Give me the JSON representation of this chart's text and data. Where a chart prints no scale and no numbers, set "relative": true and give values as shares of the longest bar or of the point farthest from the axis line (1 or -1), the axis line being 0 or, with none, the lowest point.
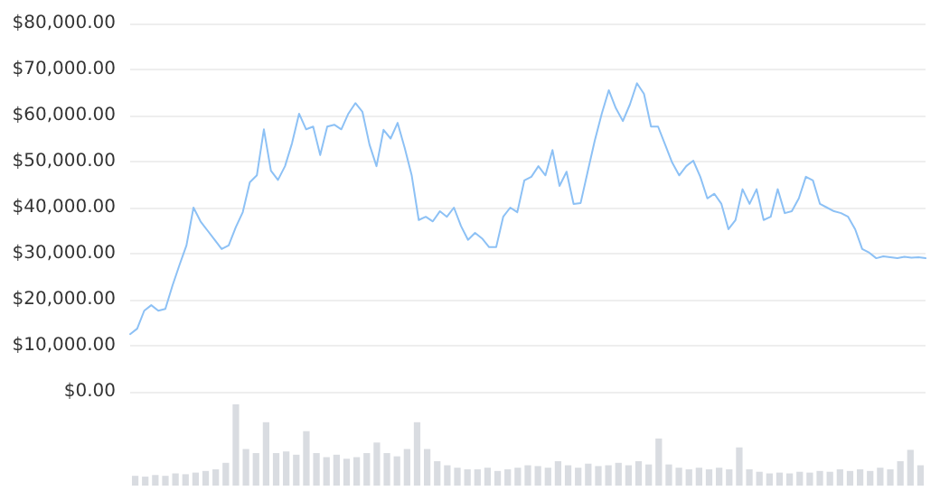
{
  "chart_data": [
    {
      "type": "line",
      "categories": [
        null,
        null,
        null,
        null,
        null,
        null,
        null,
        null,
        null,
        null,
        null,
        null,
        null,
        null,
        null,
        null,
        null,
        null,
        null,
        null,
        null,
        null,
        null,
        null,
        null,
        null,
        null,
        null,
        null,
        null,
        null,
        null,
        null,
        null,
        null,
        null,
        null,
        null,
        null,
        null,
        null,
        null,
        null,
        null,
        null,
        null,
        null,
        null,
        null,
        null,
        null,
        null,
        null,
        null,
        null,
        null,
        null,
        null,
        null,
        null,
        null,
        null,
        null,
        null,
        null,
        null,
        null,
        null,
        null,
        null,
        null,
        null,
        null,
        null,
        null,
        null,
        null,
        null,
        null,
        null,
        null,
        null,
        null,
        null,
        null,
        null,
        null,
        null,
        null,
        null,
        null,
        null,
        null,
        null,
        null,
        null,
        null,
        null,
        null,
        null,
        null,
        null,
        null,
        null,
        null,
        null,
        null,
        null,
        null,
        null,
        null,
        null,
        null,
        null
      ],
      "series": [
        {
          "color": "#8dc1f5",
          "values": [
            12500,
            13700,
            17600,
            18800,
            17600,
            18000,
            23000,
            27500,
            31800,
            40000,
            37000,
            35000,
            33000,
            31000,
            31800,
            35700,
            39000,
            45500,
            47000,
            57000,
            48000,
            46000,
            49000,
            54000,
            60400,
            57000,
            57600,
            51400,
            57600,
            58000,
            57000,
            60400,
            62700,
            60800,
            53700,
            49000,
            56900,
            55000,
            58400,
            53000,
            47000,
            37300,
            38000,
            37000,
            39200,
            38000,
            40000,
            36000,
            33000,
            34500,
            33300,
            31400,
            31400,
            38000,
            40000,
            39000,
            45900,
            46700,
            49000,
            47000,
            52500,
            44700,
            47800,
            40800,
            41000,
            47800,
            54500,
            60400,
            65500,
            61600,
            58800,
            62400,
            67000,
            64700,
            57600,
            57600,
            53700,
            49800,
            47000,
            49000,
            50200,
            46700,
            42000,
            43000,
            40800,
            35300,
            37300,
            44000,
            40800,
            44000,
            37300,
            38000,
            44000,
            38800,
            39200,
            42000,
            46700,
            45900,
            40800,
            40000,
            39200,
            38800,
            38000,
            35300,
            31000,
            30200,
            29000,
            29400,
            29200,
            29000,
            29300,
            29100,
            29200,
            29000
          ]
        }
      ],
      "ylim": [
        0,
        80000
      ],
      "yticks": [
        {
          "value": 0,
          "label": "$0.00"
        },
        {
          "value": 10000,
          "label": "$10,000.00"
        },
        {
          "value": 20000,
          "label": "$20,000.00"
        },
        {
          "value": 30000,
          "label": "$30,000.00"
        },
        {
          "value": 40000,
          "label": "$40,000.00"
        },
        {
          "value": 50000,
          "label": "$50,000.00"
        },
        {
          "value": 60000,
          "label": "$60,000.00"
        },
        {
          "value": 70000,
          "label": "$70,000.00"
        },
        {
          "value": 80000,
          "label": "$80,000.00"
        }
      ],
      "grid": "y",
      "tick_labels": "y"
    },
    {
      "type": "bar",
      "relative": true,
      "tick_labels": false,
      "color": "#d9dce1",
      "categories": [
        null,
        null,
        null,
        null,
        null,
        null,
        null,
        null,
        null,
        null,
        null,
        null,
        null,
        null,
        null,
        null,
        null,
        null,
        null,
        null,
        null,
        null,
        null,
        null,
        null,
        null,
        null,
        null,
        null,
        null,
        null,
        null,
        null,
        null,
        null,
        null,
        null,
        null,
        null,
        null,
        null,
        null,
        null,
        null,
        null,
        null,
        null,
        null,
        null,
        null,
        null,
        null,
        null,
        null,
        null,
        null,
        null,
        null,
        null,
        null,
        null,
        null,
        null,
        null,
        null,
        null,
        null,
        null,
        null,
        null,
        null,
        null,
        null,
        null,
        null,
        null,
        null,
        null,
        null
      ],
      "values": [
        0.12,
        0.11,
        0.13,
        0.12,
        0.15,
        0.14,
        0.16,
        0.18,
        0.2,
        0.28,
        1.0,
        0.45,
        0.4,
        0.78,
        0.4,
        0.42,
        0.38,
        0.67,
        0.4,
        0.35,
        0.38,
        0.33,
        0.35,
        0.4,
        0.53,
        0.4,
        0.36,
        0.45,
        0.78,
        0.45,
        0.3,
        0.25,
        0.22,
        0.2,
        0.2,
        0.22,
        0.18,
        0.2,
        0.22,
        0.25,
        0.24,
        0.22,
        0.3,
        0.25,
        0.22,
        0.27,
        0.24,
        0.25,
        0.28,
        0.25,
        0.3,
        0.26,
        0.58,
        0.26,
        0.22,
        0.2,
        0.22,
        0.2,
        0.22,
        0.2,
        0.47,
        0.2,
        0.17,
        0.15,
        0.16,
        0.15,
        0.17,
        0.16,
        0.18,
        0.17,
        0.2,
        0.18,
        0.2,
        0.18,
        0.22,
        0.2,
        0.3,
        0.44,
        0.25
      ]
    }
  ]
}
